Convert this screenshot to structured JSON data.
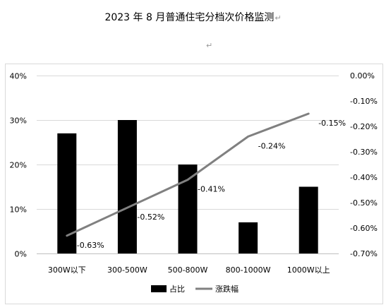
{
  "title": "2023 年 8 月普通住宅分档次价格监测",
  "paragraph_mark": "↵",
  "chart_data": {
    "type": "bar+line",
    "categories": [
      "300W以下",
      "300-500W",
      "500-800W",
      "800-1000W",
      "1000W以上"
    ],
    "series": [
      {
        "name": "占比",
        "type": "bar",
        "axis": "left",
        "color": "#000000",
        "values": [
          27,
          30,
          20,
          7,
          15
        ]
      },
      {
        "name": "涨跌幅",
        "type": "line",
        "axis": "right",
        "color": "#808080",
        "values": [
          -0.63,
          -0.52,
          -0.41,
          -0.24,
          -0.15
        ],
        "labels": [
          "-0.63%",
          "-0.52%",
          "-0.41%",
          "-0.24%",
          "-0.15%"
        ]
      }
    ],
    "y_left": {
      "min": 0,
      "max": 40,
      "ticks": [
        "0%",
        "10%",
        "20%",
        "30%",
        "40%"
      ]
    },
    "y_right": {
      "min": -0.7,
      "max": 0,
      "ticks": [
        "0.00%",
        "-0.10%",
        "-0.20%",
        "-0.30%",
        "-0.40%",
        "-0.50%",
        "-0.60%",
        "-0.70%"
      ]
    },
    "grid": true,
    "legend_position": "bottom"
  }
}
